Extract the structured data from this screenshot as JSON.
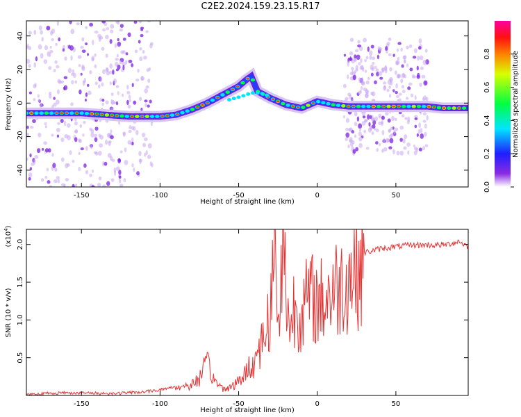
{
  "title": "C2E2.2024.159.23.15.R17",
  "chart_data": [
    {
      "type": "heatmap",
      "xlabel": "Height of straight line (km)",
      "ylabel": "Frequency (Hz)",
      "xlim": [
        -185,
        96
      ],
      "ylim": [
        -50,
        49
      ],
      "xticks": [
        -150,
        -100,
        -50,
        0,
        50
      ],
      "yticks": [
        -40,
        -20,
        0,
        20,
        40
      ],
      "colorbar": {
        "label": "Normalized spectral amplitude",
        "range": [
          0,
          1
        ],
        "ticks": [
          "0.0",
          "0.2",
          "0.4",
          "0.6",
          "0.8"
        ],
        "tick_values": [
          0.0,
          0.2,
          0.4,
          0.6,
          0.8
        ]
      },
      "ridge": {
        "x": [
          -185,
          -150,
          -120,
          -100,
          -90,
          -80,
          -70,
          -60,
          -50,
          -45,
          -42,
          -38,
          -34,
          -30,
          -20,
          -10,
          0,
          10,
          20,
          40,
          60,
          70,
          80,
          96
        ],
        "y": [
          -6,
          -6,
          -8,
          -8,
          -7,
          -4,
          0,
          5,
          10,
          14,
          16,
          7,
          5,
          3,
          -1,
          -3,
          1,
          -1,
          -2,
          -2,
          -2,
          -2,
          -3,
          -3
        ]
      },
      "secondary_track": {
        "x": [
          -56,
          -48,
          -42,
          -36,
          -30
        ],
        "y": [
          2,
          4,
          6,
          6,
          4
        ]
      },
      "scatter_regions": [
        {
          "x": [
            -185,
            -105
          ],
          "y": [
            -50,
            49
          ]
        },
        {
          "x": [
            17,
            70
          ],
          "y": [
            -30,
            38
          ]
        }
      ]
    },
    {
      "type": "line",
      "xlabel": "Height of straight line (km)",
      "ylabel": "SNR (10 * v/v)",
      "multiplier": "(x10",
      "multiplier_exp": "4",
      "multiplier_close": ")",
      "xlim": [
        -185,
        96
      ],
      "ylim": [
        0,
        2.2
      ],
      "xticks": [
        -150,
        -100,
        -50,
        0,
        50
      ],
      "yticks": [
        "0.5",
        "1.0",
        "1.5",
        "2.0"
      ],
      "ytick_values": [
        0.5,
        1.0,
        1.5,
        2.0
      ],
      "color": "#e63232",
      "envelope": {
        "x": [
          -185,
          -160,
          -130,
          -110,
          -100,
          -90,
          -80,
          -75,
          -70,
          -65,
          -60,
          -55,
          -50,
          -45,
          -40,
          -35,
          -30,
          -27,
          -25,
          -22,
          -20,
          -17,
          -15,
          -10,
          -5,
          0,
          5,
          10,
          15,
          20,
          25,
          30,
          40,
          50,
          60,
          70,
          80,
          85,
          90,
          96
        ],
        "y": [
          0.02,
          0.04,
          0.03,
          0.05,
          0.08,
          0.12,
          0.15,
          0.25,
          0.45,
          0.2,
          0.1,
          0.12,
          0.2,
          0.35,
          0.5,
          0.8,
          1.2,
          2.15,
          1.0,
          2.15,
          1.6,
          0.9,
          1.3,
          1.2,
          1.45,
          1.35,
          1.4,
          1.55,
          1.6,
          1.75,
          1.85,
          1.9,
          1.95,
          1.98,
          2.0,
          2.0,
          2.0,
          2.02,
          2.05,
          1.98
        ]
      }
    }
  ]
}
